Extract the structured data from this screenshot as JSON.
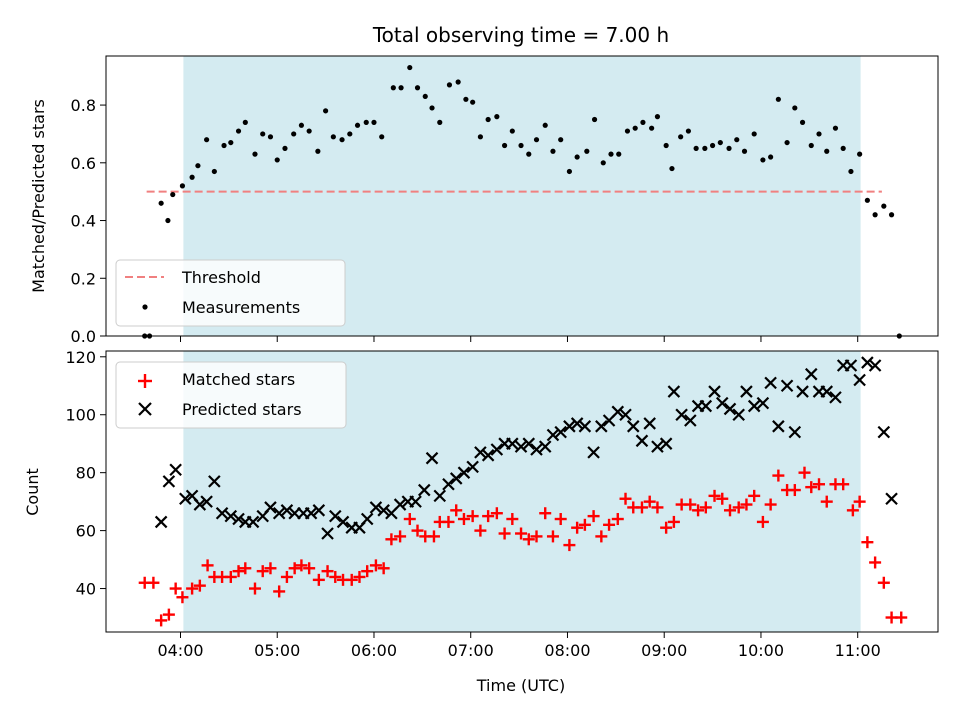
{
  "chart_data": {
    "type": "scatter",
    "title": "Total observing time = 7.00 h",
    "xlabel": "Time (UTC)",
    "x_ticks": [
      "04:00",
      "05:00",
      "06:00",
      "07:00",
      "08:00",
      "09:00",
      "10:00",
      "11:00"
    ],
    "x_range_hours": [
      3.23,
      11.83
    ],
    "observing_window_hours": [
      4.03,
      11.03
    ],
    "shading_color": "#d4ebf1",
    "top_panel": {
      "ylabel": "Matched/Predicted stars",
      "ylim": [
        0,
        0.97
      ],
      "y_ticks": [
        "0.0",
        "0.2",
        "0.4",
        "0.6",
        "0.8"
      ],
      "threshold": {
        "name": "Threshold",
        "value": 0.5,
        "x_range": [
          3.65,
          11.25
        ],
        "color": "#f08080"
      },
      "legend": {
        "placement": "lower-left",
        "entries": [
          "Threshold",
          "Measurements"
        ]
      },
      "measurements": {
        "name": "Measurements",
        "color": "#000000",
        "x": [
          3.63,
          3.68,
          3.8,
          3.87,
          3.92,
          4.02,
          4.12,
          4.18,
          4.27,
          4.35,
          4.45,
          4.52,
          4.6,
          4.67,
          4.77,
          4.85,
          4.93,
          5.0,
          5.08,
          5.17,
          5.25,
          5.33,
          5.42,
          5.5,
          5.58,
          5.67,
          5.75,
          5.83,
          5.92,
          6.0,
          6.08,
          6.2,
          6.28,
          6.37,
          6.45,
          6.53,
          6.6,
          6.68,
          6.78,
          6.87,
          6.95,
          7.02,
          7.1,
          7.18,
          7.27,
          7.35,
          7.43,
          7.52,
          7.6,
          7.68,
          7.77,
          7.85,
          7.93,
          8.02,
          8.1,
          8.2,
          8.28,
          8.37,
          8.45,
          8.53,
          8.62,
          8.7,
          8.78,
          8.87,
          8.93,
          9.02,
          9.08,
          9.17,
          9.25,
          9.33,
          9.42,
          9.5,
          9.58,
          9.67,
          9.75,
          9.83,
          9.93,
          10.02,
          10.1,
          10.18,
          10.27,
          10.35,
          10.43,
          10.52,
          10.6,
          10.68,
          10.77,
          10.85,
          10.93,
          11.02,
          11.1,
          11.18,
          11.27,
          11.35,
          11.43
        ],
        "y": [
          0.0,
          0.0,
          0.46,
          0.4,
          0.49,
          0.52,
          0.55,
          0.59,
          0.68,
          0.57,
          0.66,
          0.67,
          0.71,
          0.74,
          0.63,
          0.7,
          0.69,
          0.61,
          0.65,
          0.7,
          0.73,
          0.71,
          0.64,
          0.78,
          0.69,
          0.68,
          0.7,
          0.73,
          0.74,
          0.74,
          0.69,
          0.86,
          0.86,
          0.93,
          0.86,
          0.83,
          0.79,
          0.74,
          0.87,
          0.88,
          0.82,
          0.81,
          0.69,
          0.75,
          0.76,
          0.66,
          0.71,
          0.66,
          0.63,
          0.68,
          0.73,
          0.64,
          0.68,
          0.57,
          0.62,
          0.64,
          0.75,
          0.6,
          0.63,
          0.63,
          0.71,
          0.72,
          0.74,
          0.72,
          0.76,
          0.66,
          0.58,
          0.69,
          0.71,
          0.65,
          0.65,
          0.66,
          0.67,
          0.65,
          0.68,
          0.64,
          0.7,
          0.61,
          0.62,
          0.82,
          0.67,
          0.79,
          0.74,
          0.66,
          0.7,
          0.64,
          0.72,
          0.65,
          0.57,
          0.63,
          0.47,
          0.42,
          0.45,
          0.42,
          0.0
        ]
      }
    },
    "bottom_panel": {
      "ylabel": "Count",
      "ylim": [
        25,
        122
      ],
      "y_ticks": [
        "40",
        "60",
        "80",
        "100",
        "120"
      ],
      "legend": {
        "placement": "upper-left",
        "entries": [
          "Matched stars",
          "Predicted stars"
        ]
      },
      "series": [
        {
          "name": "Matched stars",
          "marker": "plus",
          "color": "#ff0000",
          "x": [
            3.63,
            3.72,
            3.8,
            3.88,
            3.95,
            4.02,
            4.12,
            4.2,
            4.28,
            4.35,
            4.43,
            4.52,
            4.6,
            4.67,
            4.77,
            4.85,
            4.93,
            5.02,
            5.1,
            5.18,
            5.25,
            5.33,
            5.43,
            5.52,
            5.6,
            5.68,
            5.77,
            5.85,
            5.93,
            6.02,
            6.1,
            6.18,
            6.27,
            6.37,
            6.45,
            6.53,
            6.62,
            6.68,
            6.77,
            6.85,
            6.93,
            7.02,
            7.1,
            7.18,
            7.27,
            7.35,
            7.43,
            7.52,
            7.6,
            7.68,
            7.77,
            7.85,
            7.93,
            8.02,
            8.1,
            8.18,
            8.27,
            8.35,
            8.43,
            8.52,
            8.6,
            8.68,
            8.77,
            8.85,
            8.93,
            9.02,
            9.1,
            9.18,
            9.27,
            9.35,
            9.43,
            9.52,
            9.6,
            9.68,
            9.77,
            9.85,
            9.93,
            10.02,
            10.1,
            10.18,
            10.27,
            10.35,
            10.45,
            10.52,
            10.6,
            10.68,
            10.77,
            10.85,
            10.95,
            11.02,
            11.1,
            11.18,
            11.27,
            11.35,
            11.45
          ],
          "y": [
            42,
            42,
            29,
            31,
            40,
            37,
            40,
            41,
            48,
            44,
            44,
            44,
            46,
            47,
            40,
            46,
            47,
            39,
            44,
            47,
            48,
            47,
            43,
            46,
            44,
            43,
            43,
            44,
            46,
            48,
            47,
            57,
            58,
            64,
            60,
            58,
            58,
            63,
            63,
            67,
            64,
            65,
            60,
            65,
            66,
            59,
            64,
            59,
            57,
            58,
            66,
            58,
            64,
            55,
            61,
            62,
            65,
            58,
            62,
            64,
            71,
            68,
            68,
            70,
            68,
            61,
            63,
            69,
            69,
            67,
            68,
            72,
            71,
            67,
            68,
            69,
            72,
            63,
            69,
            79,
            74,
            74,
            80,
            75,
            76,
            70,
            76,
            76,
            67,
            70,
            56,
            49,
            42,
            30,
            30
          ]
        },
        {
          "name": "Predicted stars",
          "marker": "x",
          "color": "#000000",
          "x": [
            3.8,
            3.88,
            3.95,
            4.05,
            4.12,
            4.2,
            4.27,
            4.35,
            4.43,
            4.52,
            4.6,
            4.67,
            4.75,
            4.85,
            4.93,
            5.02,
            5.1,
            5.18,
            5.27,
            5.35,
            5.43,
            5.52,
            5.6,
            5.68,
            5.77,
            5.85,
            5.93,
            6.02,
            6.1,
            6.18,
            6.27,
            6.35,
            6.43,
            6.52,
            6.6,
            6.68,
            6.77,
            6.85,
            6.93,
            7.02,
            7.1,
            7.18,
            7.27,
            7.35,
            7.43,
            7.52,
            7.6,
            7.68,
            7.77,
            7.85,
            7.93,
            8.02,
            8.1,
            8.18,
            8.27,
            8.35,
            8.43,
            8.52,
            8.6,
            8.68,
            8.77,
            8.85,
            8.93,
            9.02,
            9.1,
            9.18,
            9.27,
            9.35,
            9.43,
            9.52,
            9.6,
            9.68,
            9.77,
            9.85,
            9.93,
            10.02,
            10.1,
            10.18,
            10.27,
            10.35,
            10.43,
            10.52,
            10.6,
            10.68,
            10.77,
            10.85,
            10.93,
            11.02,
            11.1,
            11.18,
            11.27,
            11.35
          ],
          "y": [
            63,
            77,
            81,
            71,
            72,
            69,
            70,
            77,
            66,
            65,
            64,
            63,
            63,
            65,
            68,
            66,
            67,
            66,
            66,
            66,
            67,
            59,
            65,
            63,
            61,
            61,
            64,
            68,
            67,
            66,
            69,
            70,
            70,
            74,
            85,
            72,
            76,
            78,
            80,
            82,
            87,
            86,
            88,
            90,
            90,
            89,
            90,
            88,
            89,
            93,
            94,
            96,
            97,
            96,
            87,
            96,
            98,
            101,
            100,
            96,
            91,
            97,
            89,
            90,
            108,
            100,
            98,
            103,
            103,
            108,
            104,
            102,
            100,
            108,
            103,
            104,
            111,
            96,
            110,
            94,
            108,
            114,
            108,
            108,
            106,
            117,
            117,
            112,
            118,
            117,
            94,
            71
          ]
        }
      ]
    }
  }
}
